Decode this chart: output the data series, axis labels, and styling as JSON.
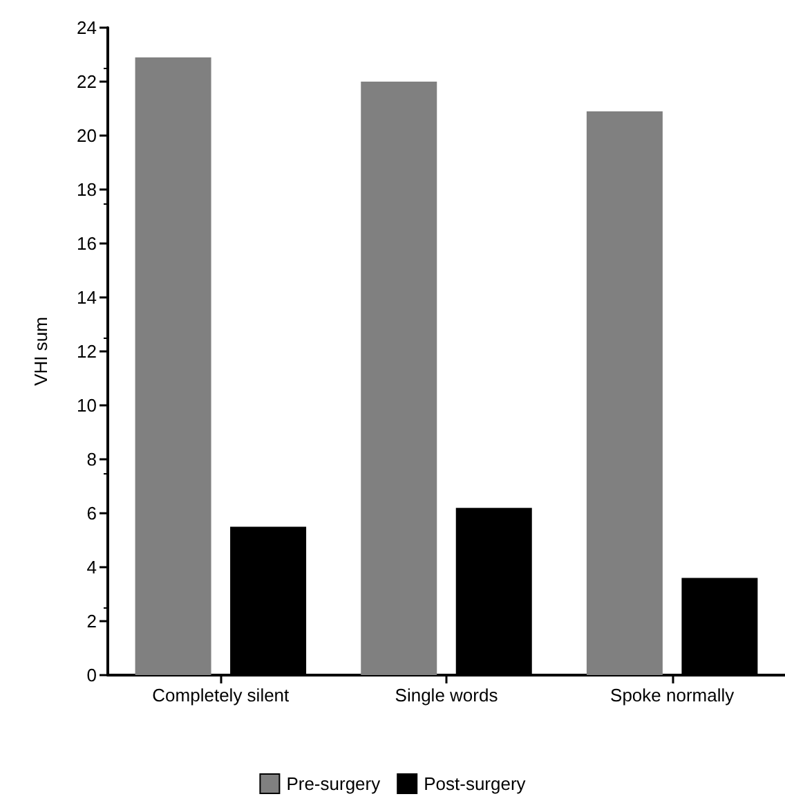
{
  "chart_data": {
    "type": "bar",
    "ylabel": "VHI sum",
    "categories": [
      "Completely silent",
      "Single words",
      "Spoke normally"
    ],
    "series": [
      {
        "name": "Pre-surgery",
        "color": "#808080",
        "values": [
          22.9,
          22.0,
          20.9
        ]
      },
      {
        "name": "Post-surgery",
        "color": "#000000",
        "values": [
          5.5,
          6.2,
          3.6
        ]
      }
    ],
    "ylim": [
      0,
      24
    ],
    "yticks": [
      0,
      2,
      4,
      6,
      8,
      10,
      12,
      14,
      16,
      18,
      20,
      22,
      24
    ],
    "grid": false,
    "legend": "bottom"
  }
}
